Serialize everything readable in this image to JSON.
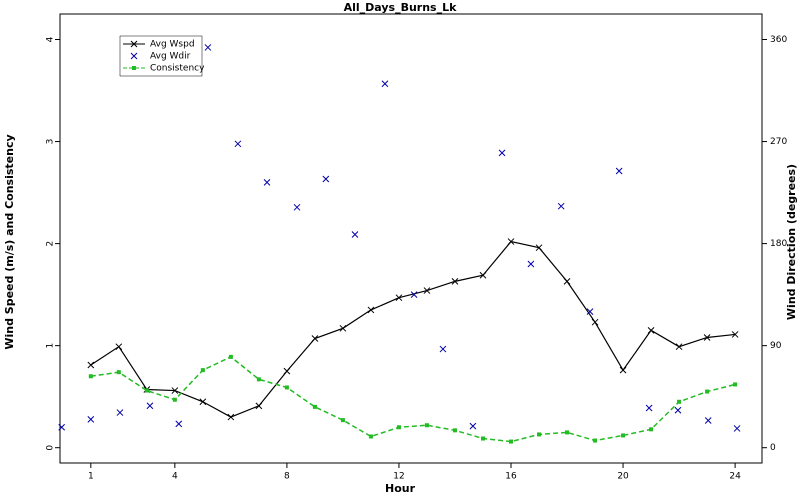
{
  "chart_data": {
    "type": "line",
    "title": "All_Days_Burns_Lk",
    "xlabel": "Hour",
    "ylabel": "Wind Speed (m/s) and Consistency",
    "y2label": "Wind Direction (degrees)",
    "xlim": [
      -0.1,
      24.96
    ],
    "xticks": [
      1,
      4,
      8,
      12,
      16,
      20,
      24
    ],
    "ylim": [
      -0.15,
      4.25
    ],
    "yticks": [
      0,
      1,
      2,
      3,
      4
    ],
    "y2lim": [
      -13.5,
      382.5
    ],
    "y2ticks": [
      0,
      90,
      180,
      270,
      360
    ],
    "legend": "upper left",
    "series": [
      {
        "name": "Avg Wspd",
        "color": "#000000",
        "line": "solid",
        "marker": "x",
        "x": [
          1,
          2,
          3,
          4,
          5,
          6,
          7,
          8,
          9,
          10,
          11,
          12,
          13,
          14,
          15,
          16,
          17,
          18,
          19,
          20,
          21,
          22,
          23,
          24
        ],
        "values": [
          0.81,
          0.99,
          0.57,
          0.56,
          0.45,
          0.3,
          0.41,
          0.75,
          1.07,
          1.17,
          1.35,
          1.47,
          1.54,
          1.63,
          1.69,
          2.02,
          1.96,
          1.63,
          1.23,
          0.76,
          1.15,
          0.99,
          1.08,
          1.11
        ]
      },
      {
        "name": "Avg Wdir",
        "color": "#0000aa",
        "line": "none",
        "marker": "x",
        "axis": "y2",
        "x": [
          -0.04,
          1,
          2.04,
          3.11,
          4.14,
          5.18,
          6.25,
          7.29,
          8.36,
          9.39,
          10.43,
          11.5,
          12.54,
          13.57,
          14.64,
          15.68,
          16.71,
          17.79,
          18.82,
          19.86,
          20.93,
          21.96,
          23.04,
          24.07
        ],
        "values": [
          18,
          25,
          31,
          37,
          21,
          353,
          268,
          234,
          212,
          237,
          188,
          321,
          135,
          87,
          19,
          260,
          162,
          213,
          120,
          244,
          35,
          33,
          24,
          17
        ]
      },
      {
        "name": "Consistency",
        "color": "#22bb22",
        "line": "dashed",
        "marker": "square",
        "x": [
          1,
          2,
          3,
          4,
          5,
          6,
          7,
          8,
          9,
          10,
          11,
          12,
          13,
          14,
          15,
          16,
          17,
          18,
          19,
          20,
          21,
          22,
          23,
          24
        ],
        "values": [
          0.7,
          0.74,
          0.56,
          0.47,
          0.76,
          0.89,
          0.67,
          0.59,
          0.4,
          0.27,
          0.11,
          0.2,
          0.22,
          0.17,
          0.09,
          0.06,
          0.13,
          0.15,
          0.07,
          0.12,
          0.18,
          0.45,
          0.55,
          0.62
        ]
      }
    ]
  }
}
